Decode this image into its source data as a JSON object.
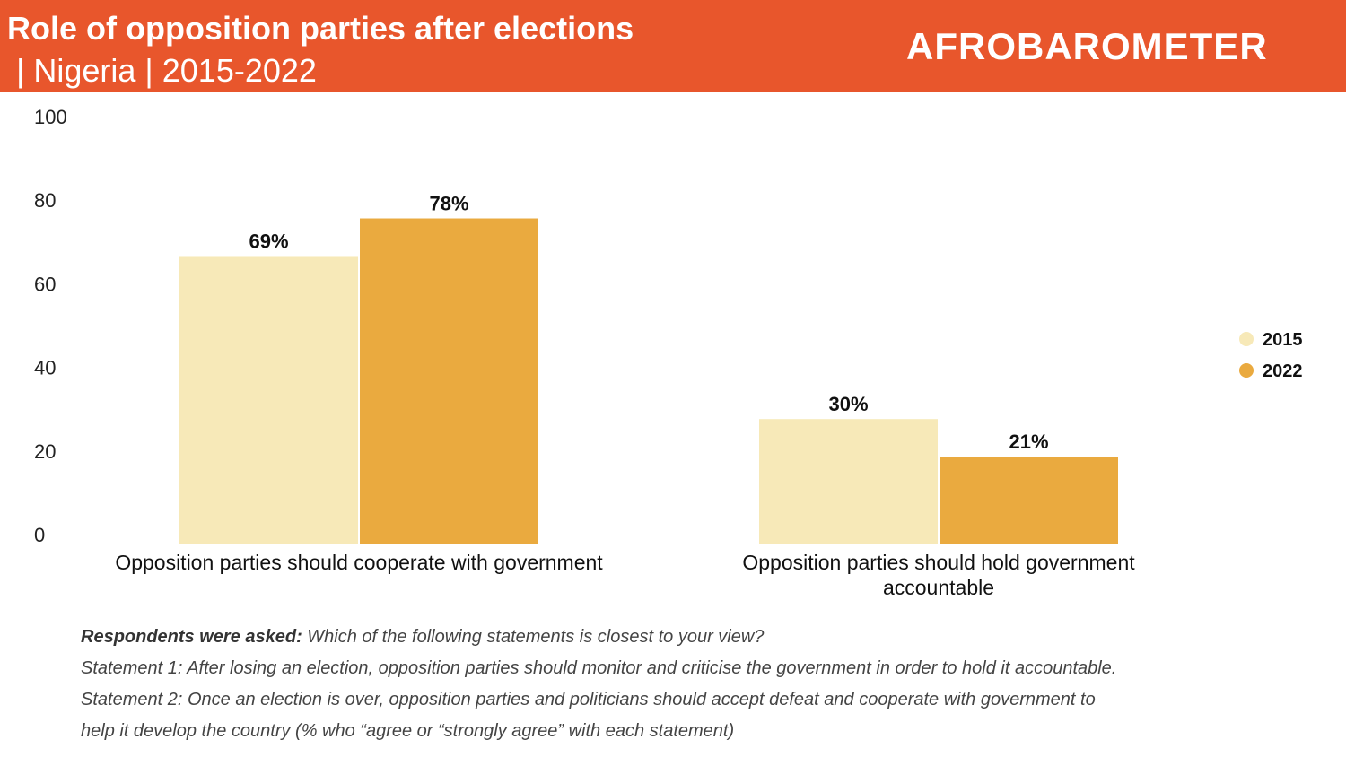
{
  "header": {
    "title": "Role of opposition parties after elections",
    "subtitle": " | Nigeria | 2015-2022",
    "logo_text": "AFROBAROMETER"
  },
  "colors": {
    "header_bg": "#e8562c",
    "series_2015": "#f7e9b8",
    "series_2022": "#eaaa3f"
  },
  "chart_data": {
    "type": "bar",
    "categories": [
      [
        "Opposition parties should cooperate with government"
      ],
      [
        "Opposition parties should hold government",
        "accountable"
      ]
    ],
    "series": [
      {
        "name": "2015",
        "values": [
          69,
          30
        ],
        "labels": [
          "69%",
          "30%"
        ]
      },
      {
        "name": "2022",
        "values": [
          78,
          21
        ],
        "labels": [
          "78%",
          "21%"
        ]
      }
    ],
    "ylim": [
      0,
      100
    ],
    "yticks": [
      0,
      20,
      40,
      60,
      80,
      100
    ],
    "grid": false,
    "legend": "right",
    "xlabel": "",
    "ylabel": ""
  },
  "footnote": {
    "lead": "Respondents were asked:",
    "question": " Which of the following statements is closest to your view?",
    "statement1": "Statement 1: After losing an election, opposition parties should monitor and criticise the government in order to hold it accountable.",
    "statement2_line1": "Statement 2: Once an election is over, opposition parties and politicians should accept defeat and cooperate with government to",
    "statement2_line2": "help it develop the country (% who “agree or “strongly agree” with each statement)"
  }
}
